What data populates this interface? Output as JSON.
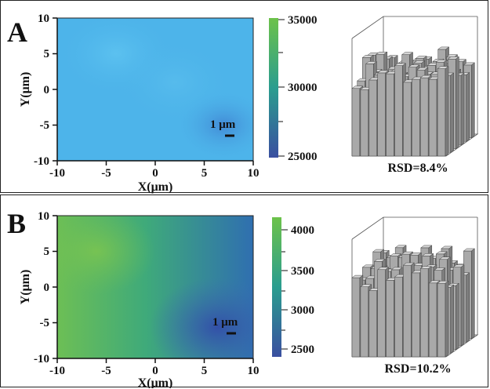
{
  "panels": [
    {
      "letter": "A",
      "xlabel": "X(μm)",
      "ylabel": "Y(μm)",
      "scale_bar": "1 μm",
      "rsd": "RSD=8.4%",
      "colorbar_ticks": [
        "35000",
        "30000",
        "25000"
      ]
    },
    {
      "letter": "B",
      "xlabel": "X(μm)",
      "ylabel": "Y(μm)",
      "scale_bar": "1 μm",
      "rsd": "RSD=10.2%",
      "colorbar_ticks": [
        "4000",
        "3500",
        "3000",
        "2500"
      ]
    }
  ],
  "chart_data": [
    {
      "type": "heatmap",
      "xlim": [
        -10,
        10
      ],
      "ylim": [
        -10,
        10
      ],
      "x_ticks": [
        -10,
        -5,
        0,
        5,
        10
      ],
      "y_ticks": [
        10,
        5,
        0,
        -5,
        -10
      ],
      "colorbar": {
        "min": 25000,
        "max": 35000,
        "ticks": [
          35000,
          30000,
          25000
        ],
        "colors": [
          "#3a4fa0",
          "#2a9d8f",
          "#6cc24a"
        ]
      },
      "map_color": "#4db4ea",
      "bar3d_rsd_percent": 8.4
    },
    {
      "type": "heatmap",
      "xlim": [
        -10,
        10
      ],
      "ylim": [
        -10,
        10
      ],
      "x_ticks": [
        -10,
        -5,
        0,
        5,
        10
      ],
      "y_ticks": [
        10,
        5,
        0,
        -5,
        -10
      ],
      "colorbar": {
        "min": 2500,
        "max": 4000,
        "ticks": [
          4000,
          3500,
          3000,
          2500
        ],
        "colors": [
          "#3a4fa0",
          "#2a9d8f",
          "#6cc24a"
        ]
      },
      "map_color": "#4aaa6a",
      "bar3d_rsd_percent": 10.2
    }
  ]
}
